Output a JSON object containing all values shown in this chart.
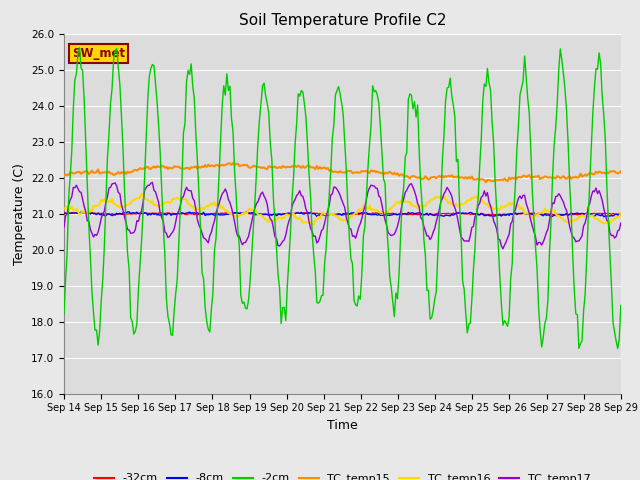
{
  "title": "Soil Temperature Profile C2",
  "xlabel": "Time",
  "ylabel": "Temperature (C)",
  "ylim": [
    16.0,
    26.0
  ],
  "yticks": [
    16.0,
    17.0,
    18.0,
    19.0,
    20.0,
    21.0,
    22.0,
    23.0,
    24.0,
    25.0,
    26.0
  ],
  "x_tick_labels": [
    "Sep 14",
    "Sep 15",
    "Sep 16",
    "Sep 17",
    "Sep 18",
    "Sep 19",
    "Sep 20",
    "Sep 21",
    "Sep 22",
    "Sep 23",
    "Sep 24",
    "Sep 25",
    "Sep 26",
    "Sep 27",
    "Sep 28",
    "Sep 29"
  ],
  "annotation_text": "SW_met",
  "annotation_color": "#8B0000",
  "annotation_bg": "#FFD700",
  "series_colors": {
    "neg32cm": "#FF0000",
    "neg8cm": "#0000FF",
    "neg2cm": "#00CC00",
    "TC_temp15": "#FF8C00",
    "TC_temp16": "#FFD700",
    "TC_temp17": "#9400D3"
  },
  "legend_labels": [
    "-32cm",
    "-8cm",
    "-2cm",
    "TC_temp15",
    "TC_temp16",
    "TC_temp17"
  ],
  "bg_color": "#DCDCDC",
  "fig_bg_color": "#E8E8E8",
  "grid_color": "#FFFFFF",
  "title_fontsize": 11,
  "axis_fontsize": 9,
  "tick_fontsize": 7.5,
  "n_days": 15,
  "n_points_per_day": 24
}
